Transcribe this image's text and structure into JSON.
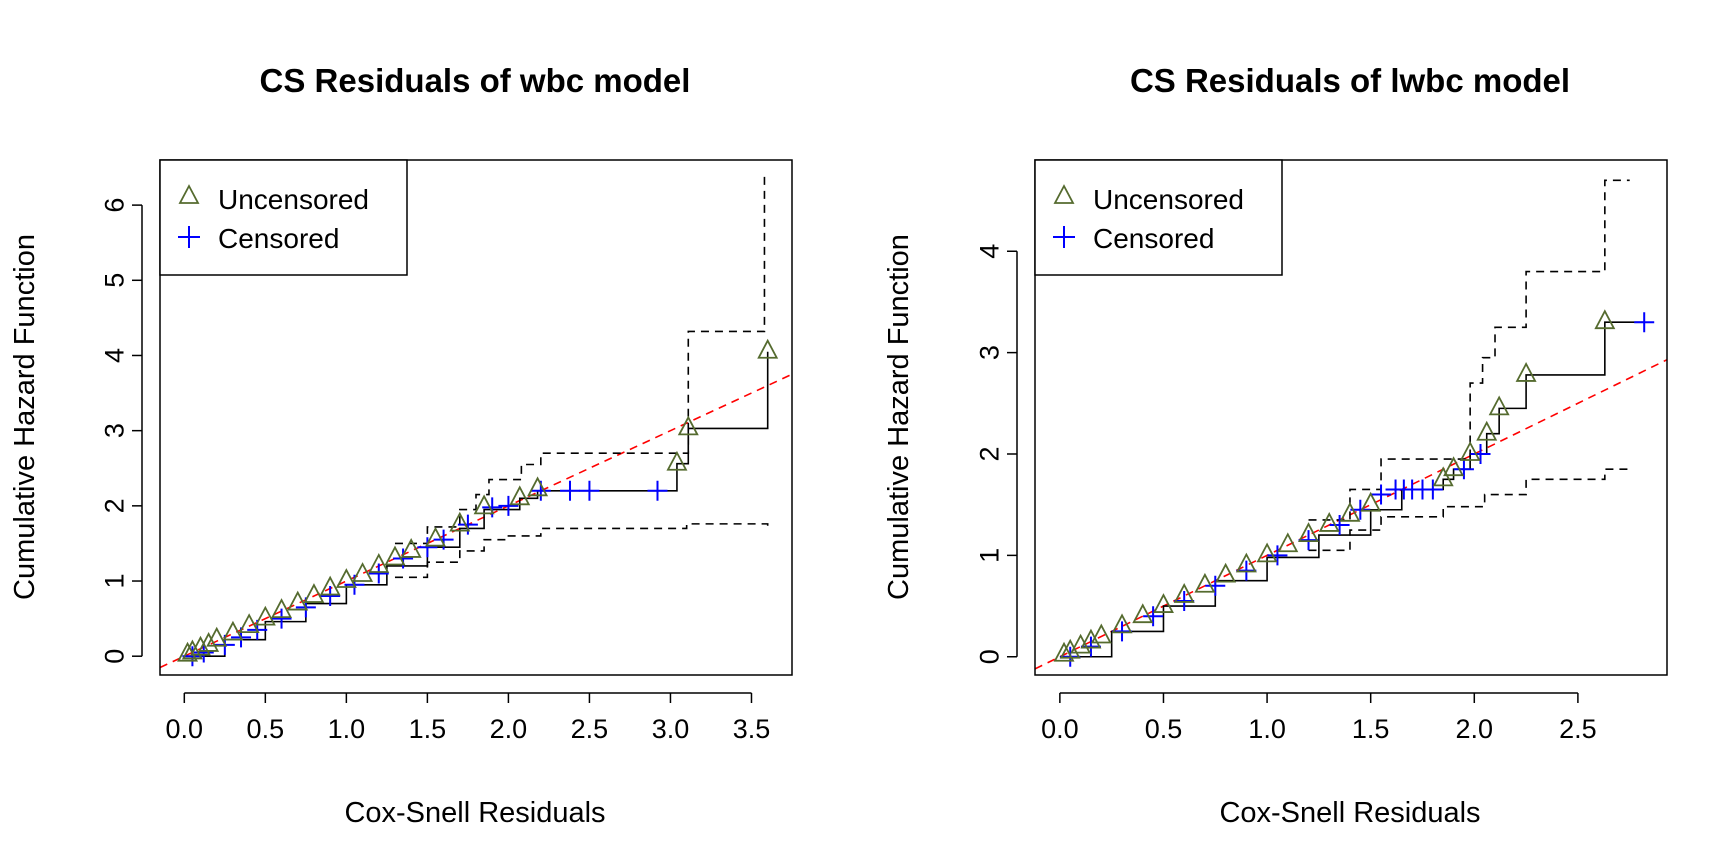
{
  "chart_data": [
    {
      "type": "scatter",
      "title": "CS Residuals of wbc model",
      "xlabel": "Cox-Snell Residuals",
      "ylabel": "Cumulative Hazard Function",
      "xlim": [
        -0.15,
        3.75
      ],
      "ylim": [
        -0.25,
        6.6
      ],
      "xticks": [
        0.0,
        0.5,
        1.0,
        1.5,
        2.0,
        2.5,
        3.0,
        3.5
      ],
      "xtick_labels": [
        "0.0",
        "0.5",
        "1.0",
        "1.5",
        "2.0",
        "2.5",
        "3.0",
        "3.5"
      ],
      "yticks": [
        0,
        1,
        2,
        3,
        4,
        5,
        6
      ],
      "ytick_labels": [
        "0",
        "1",
        "2",
        "3",
        "4",
        "5",
        "6"
      ],
      "legend": {
        "position": "top-left",
        "entries": [
          {
            "label": "Uncensored",
            "marker": "triangle",
            "color": "#556b2f"
          },
          {
            "label": "Censored",
            "marker": "plus",
            "color": "#0000ff"
          }
        ]
      },
      "reference_line": {
        "slope": 1,
        "intercept": 0,
        "color": "#ff0000",
        "style": "dashed"
      },
      "step_estimate": {
        "color": "#000000",
        "x": [
          0.0,
          0.25,
          0.5,
          0.75,
          1.0,
          1.25,
          1.5,
          1.7,
          1.85,
          2.07,
          2.18,
          3.04,
          3.11,
          3.6
        ],
        "y": [
          0.0,
          0.22,
          0.46,
          0.7,
          0.95,
          1.2,
          1.45,
          1.7,
          1.95,
          2.1,
          2.2,
          2.56,
          3.03,
          4.05
        ]
      },
      "upper_ci": {
        "color": "#000000",
        "style": "dashed",
        "x": [
          1.3,
          1.5,
          1.7,
          1.8,
          1.88,
          2.08,
          2.2,
          3.02,
          3.11,
          3.58
        ],
        "y": [
          1.5,
          1.72,
          1.95,
          2.15,
          2.35,
          2.55,
          2.7,
          2.7,
          4.32,
          6.4
        ]
      },
      "lower_ci": {
        "color": "#000000",
        "style": "dashed",
        "x": [
          1.3,
          1.5,
          1.7,
          1.85,
          2.0,
          2.2,
          3.1,
          3.6
        ],
        "y": [
          1.05,
          1.25,
          1.4,
          1.55,
          1.6,
          1.7,
          1.76,
          1.7
        ]
      },
      "uncensored": {
        "x": [
          0.02,
          0.05,
          0.1,
          0.15,
          0.2,
          0.3,
          0.4,
          0.5,
          0.6,
          0.7,
          0.8,
          0.9,
          1.0,
          1.1,
          1.2,
          1.3,
          1.4,
          1.55,
          1.7,
          1.85,
          2.07,
          2.18,
          3.04,
          3.11,
          3.6
        ],
        "y": [
          0.02,
          0.05,
          0.1,
          0.15,
          0.22,
          0.3,
          0.4,
          0.5,
          0.6,
          0.7,
          0.8,
          0.9,
          1.0,
          1.08,
          1.2,
          1.3,
          1.4,
          1.55,
          1.75,
          1.98,
          2.1,
          2.22,
          2.56,
          3.03,
          4.05
        ]
      },
      "censored": {
        "x": [
          0.05,
          0.12,
          0.25,
          0.35,
          0.45,
          0.6,
          0.75,
          0.9,
          1.05,
          1.2,
          1.35,
          1.5,
          1.6,
          1.75,
          1.9,
          2.0,
          2.2,
          2.38,
          2.5,
          2.92
        ],
        "y": [
          0.0,
          0.05,
          0.15,
          0.25,
          0.35,
          0.5,
          0.65,
          0.8,
          0.95,
          1.1,
          1.3,
          1.45,
          1.55,
          1.75,
          1.98,
          2.0,
          2.2,
          2.2,
          2.2,
          2.2
        ]
      }
    },
    {
      "type": "scatter",
      "title": "CS Residuals of lwbc model",
      "xlabel": "Cox-Snell Residuals",
      "ylabel": "Cumulative Hazard Function",
      "xlim": [
        -0.12,
        2.93
      ],
      "ylim": [
        -0.18,
        4.9
      ],
      "xticks": [
        0.0,
        0.5,
        1.0,
        1.5,
        2.0,
        2.5
      ],
      "xtick_labels": [
        "0.0",
        "0.5",
        "1.0",
        "1.5",
        "2.0",
        "2.5"
      ],
      "yticks": [
        0,
        1,
        2,
        3,
        4
      ],
      "ytick_labels": [
        "0",
        "1",
        "2",
        "3",
        "4"
      ],
      "legend": {
        "position": "top-left",
        "entries": [
          {
            "label": "Uncensored",
            "marker": "triangle",
            "color": "#556b2f"
          },
          {
            "label": "Censored",
            "marker": "plus",
            "color": "#0000ff"
          }
        ]
      },
      "reference_line": {
        "slope": 1,
        "intercept": 0,
        "color": "#ff0000",
        "style": "dashed"
      },
      "step_estimate": {
        "color": "#000000",
        "x": [
          0.0,
          0.25,
          0.5,
          0.75,
          1.0,
          1.25,
          1.5,
          1.65,
          1.85,
          1.9,
          1.98,
          2.06,
          2.12,
          2.25,
          2.63,
          2.82
        ],
        "y": [
          0.0,
          0.25,
          0.5,
          0.75,
          0.98,
          1.2,
          1.45,
          1.65,
          1.75,
          1.85,
          2.0,
          2.2,
          2.45,
          2.78,
          3.3,
          3.3
        ]
      },
      "upper_ci": {
        "color": "#000000",
        "style": "dashed",
        "x": [
          1.2,
          1.4,
          1.55,
          1.85,
          1.98,
          2.04,
          2.1,
          2.14,
          2.25,
          2.63,
          2.75
        ],
        "y": [
          1.35,
          1.65,
          1.95,
          1.95,
          2.7,
          2.95,
          3.25,
          3.25,
          3.8,
          4.7,
          4.7
        ]
      },
      "lower_ci": {
        "color": "#000000",
        "style": "dashed",
        "x": [
          1.2,
          1.4,
          1.55,
          1.85,
          2.05,
          2.25,
          2.63,
          2.75
        ],
        "y": [
          1.05,
          1.25,
          1.38,
          1.48,
          1.6,
          1.75,
          1.85,
          1.88
        ]
      },
      "uncensored": {
        "x": [
          0.02,
          0.05,
          0.1,
          0.15,
          0.2,
          0.3,
          0.4,
          0.5,
          0.6,
          0.7,
          0.8,
          0.9,
          1.0,
          1.1,
          1.2,
          1.3,
          1.4,
          1.5,
          1.85,
          1.9,
          1.98,
          2.06,
          2.12,
          2.25,
          2.63
        ],
        "y": [
          0.02,
          0.05,
          0.1,
          0.15,
          0.2,
          0.3,
          0.4,
          0.5,
          0.6,
          0.7,
          0.8,
          0.9,
          1.0,
          1.1,
          1.2,
          1.3,
          1.4,
          1.5,
          1.75,
          1.85,
          2.0,
          2.2,
          2.45,
          2.78,
          3.3
        ]
      },
      "censored": {
        "x": [
          0.05,
          0.15,
          0.3,
          0.45,
          0.6,
          0.75,
          0.9,
          1.05,
          1.2,
          1.35,
          1.45,
          1.55,
          1.62,
          1.66,
          1.7,
          1.75,
          1.8,
          1.95,
          2.03,
          2.82
        ],
        "y": [
          0.0,
          0.1,
          0.25,
          0.4,
          0.55,
          0.7,
          0.85,
          1.0,
          1.15,
          1.3,
          1.45,
          1.6,
          1.65,
          1.65,
          1.65,
          1.65,
          1.65,
          1.85,
          2.0,
          3.3
        ]
      }
    }
  ]
}
